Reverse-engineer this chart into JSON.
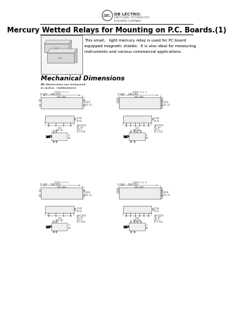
{
  "title": "Mercury Wetted Relays for Mounting on P.C. Boards.(1)",
  "logo_text": "DB LECTRO:",
  "logo_sub1": "SWITCHING TECHNOLOGY",
  "logo_sub2": "SYSTEMS COMPANY",
  "description_lines": [
    "This small,   light mercury relay is used for PC board",
    "equipped magnetic shields.  It is also ideal for measuring",
    "instruments and various commercial applications."
  ],
  "mech_title": "Mechanical Dimensions",
  "mech_sub1": "All dimensions are measured",
  "mech_sub2": "in inches  (millimeters).",
  "models": [
    "51W - 1A(2D)",
    "51W - 2A(2D)",
    "51W - 1B(2D)",
    "51W - 2B(2D)"
  ],
  "bg_color": "#ffffff",
  "text_color": "#000000",
  "dim_color": "#444444"
}
